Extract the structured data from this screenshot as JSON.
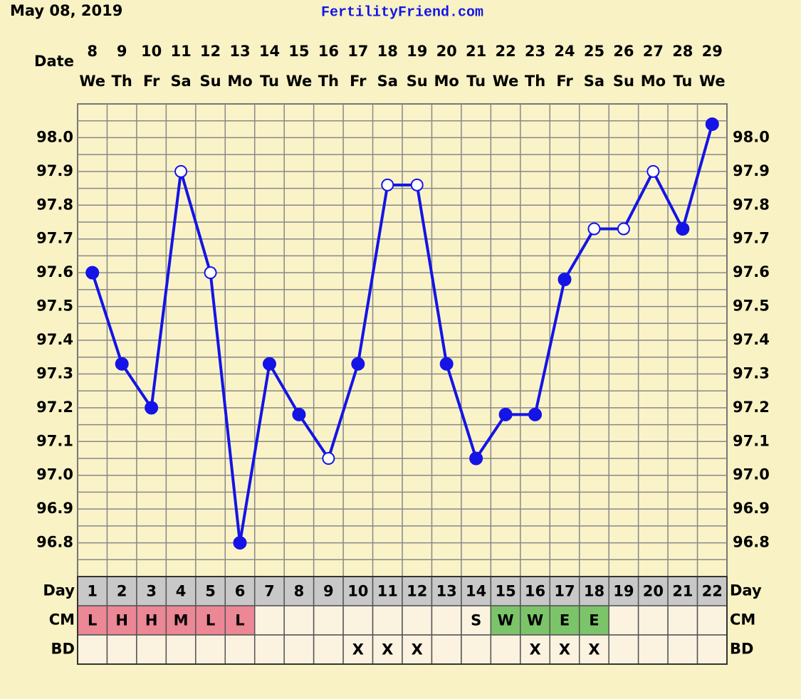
{
  "header": {
    "date": "May 08, 2019",
    "site": "FertilityFriend.com"
  },
  "chart_data": {
    "type": "line",
    "date_label": "Date",
    "categories": [
      "8",
      "9",
      "10",
      "11",
      "12",
      "13",
      "14",
      "15",
      "16",
      "17",
      "18",
      "19",
      "20",
      "21",
      "22",
      "23",
      "24",
      "25",
      "26",
      "27",
      "28",
      "29"
    ],
    "weekdays": [
      "We",
      "Th",
      "Fr",
      "Sa",
      "Su",
      "Mo",
      "Tu",
      "We",
      "Th",
      "Fr",
      "Sa",
      "Su",
      "Mo",
      "Tu",
      "We",
      "Th",
      "Fr",
      "Sa",
      "Su",
      "Mo",
      "Tu",
      "We"
    ],
    "series": [
      {
        "color": "#1414e6",
        "values": [
          97.6,
          97.33,
          97.2,
          97.9,
          97.6,
          96.8,
          97.33,
          97.18,
          97.05,
          97.33,
          97.86,
          97.86,
          97.33,
          97.05,
          97.18,
          97.18,
          97.58,
          97.73,
          97.73,
          97.9,
          97.73,
          98.04
        ],
        "open_markers": [
          false,
          false,
          false,
          true,
          true,
          false,
          false,
          false,
          true,
          false,
          true,
          true,
          false,
          false,
          false,
          false,
          false,
          true,
          true,
          true,
          false,
          false
        ]
      }
    ],
    "ylim": [
      96.7,
      98.1
    ],
    "yticks": [
      96.8,
      96.9,
      {
        "value": 97.0,
        "label": "97.0"
      },
      97.1,
      97.2,
      97.3,
      97.4,
      97.5,
      97.6,
      97.7,
      97.8,
      97.9,
      {
        "value": 98.0,
        "label": "98.0"
      }
    ],
    "grid": true,
    "day_label": "Day",
    "cycle_days": [
      1,
      2,
      3,
      4,
      5,
      6,
      7,
      8,
      9,
      10,
      11,
      12,
      13,
      14,
      15,
      16,
      17,
      18,
      19,
      20,
      21,
      22
    ],
    "cm_label": "CM",
    "cm": [
      "L",
      "H",
      "H",
      "M",
      "L",
      "L",
      null,
      null,
      null,
      null,
      null,
      null,
      null,
      "S",
      "W",
      "W",
      "E",
      "E",
      null,
      null,
      null,
      null
    ],
    "cm_colors": [
      "#ec8795",
      "#ec8795",
      "#ec8795",
      "#ec8795",
      "#ec8795",
      "#ec8795",
      null,
      null,
      null,
      null,
      null,
      null,
      null,
      null,
      "#7cc46a",
      "#7cc46a",
      "#7cc46a",
      "#7cc46a",
      null,
      null,
      null,
      null
    ],
    "bd_label": "BD",
    "bd": [
      null,
      null,
      null,
      null,
      null,
      null,
      null,
      null,
      null,
      "X",
      "X",
      "X",
      null,
      null,
      null,
      "X",
      "X",
      "X",
      null,
      null,
      null,
      null
    ]
  }
}
